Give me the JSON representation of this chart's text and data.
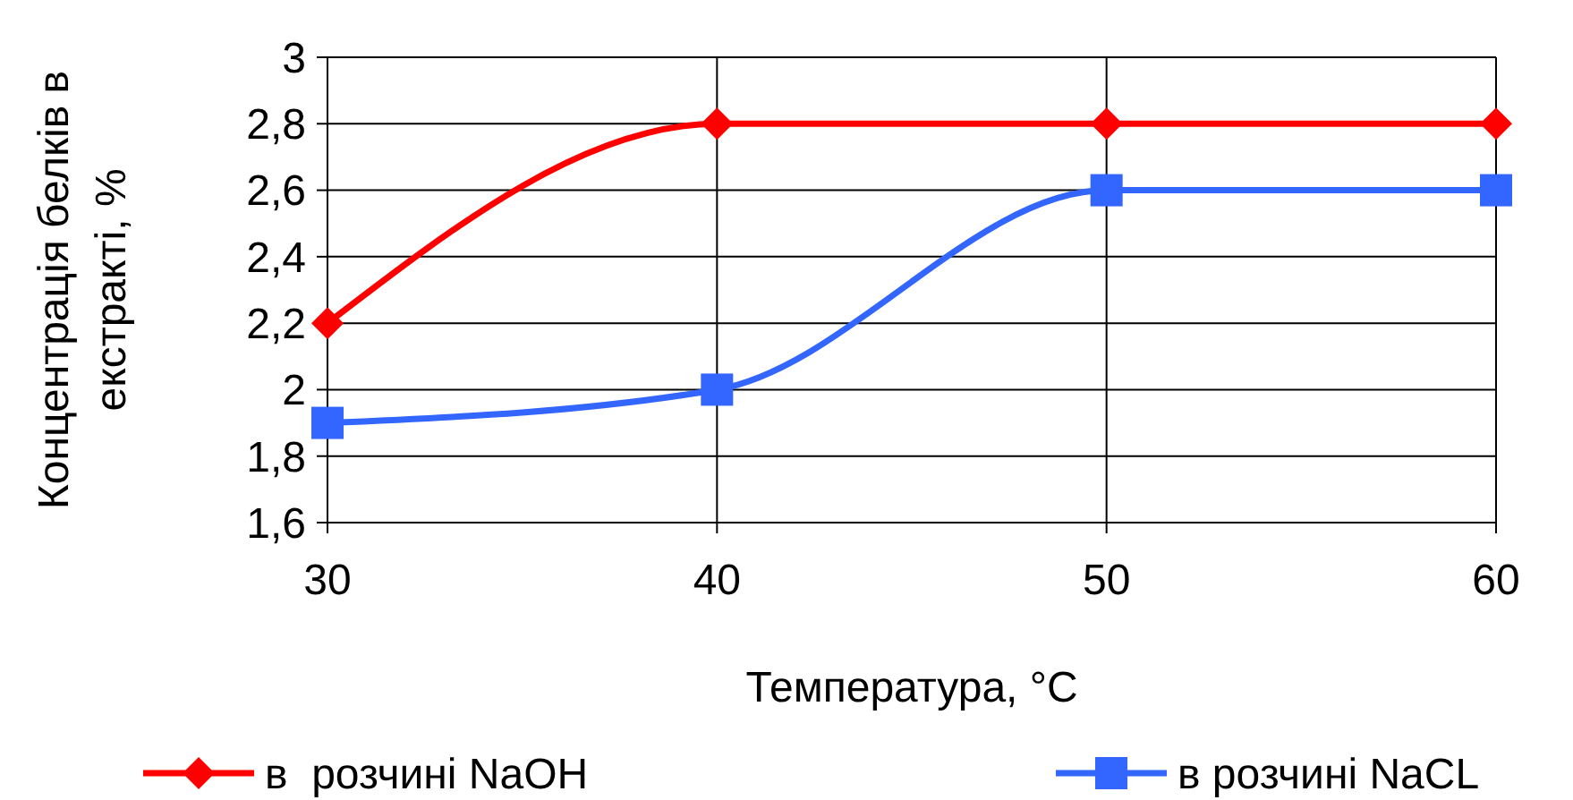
{
  "chart_data": {
    "type": "line",
    "xlabel": "Температура, °C",
    "ylabel": "Концентрація белків в екстракті, %",
    "x": [
      30,
      40,
      50,
      60
    ],
    "xlim": [
      30,
      60
    ],
    "xticks": [
      30,
      40,
      50,
      60
    ],
    "ylim": [
      1.6,
      3
    ],
    "yticks": [
      {
        "value": 1.6,
        "label": "1,6"
      },
      {
        "value": 1.8,
        "label": "1,8"
      },
      {
        "value": 2,
        "label": "2"
      },
      {
        "value": 2.2,
        "label": "2,2"
      },
      {
        "value": 2.4,
        "label": "2,4"
      },
      {
        "value": 2.6,
        "label": "2,6"
      },
      {
        "value": 2.8,
        "label": "2,8"
      },
      {
        "value": 3,
        "label": "3"
      }
    ],
    "grid": true,
    "legend": "bottom",
    "line_style": "solid",
    "series": [
      {
        "name": "в  розчині NaOH",
        "color": "#ff0000",
        "marker": "diamond",
        "values": [
          2.2,
          2.8,
          2.8,
          2.8
        ]
      },
      {
        "name": "в розчині NaCL",
        "color": "#3366ff",
        "marker": "square",
        "values": [
          1.9,
          2.0,
          2.6,
          2.6
        ]
      }
    ]
  }
}
